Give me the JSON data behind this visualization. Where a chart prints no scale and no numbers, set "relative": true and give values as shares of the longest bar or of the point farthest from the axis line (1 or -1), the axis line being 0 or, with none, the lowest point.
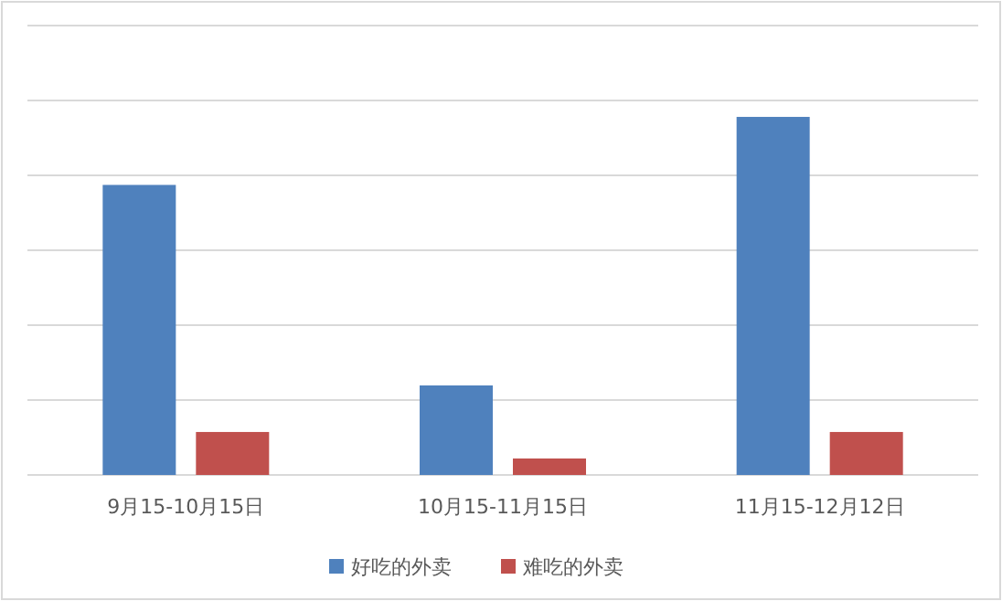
{
  "chart_data": {
    "type": "bar",
    "relative": true,
    "grid": "y",
    "legend": "bottom",
    "categories": [
      "9月15-10月15日",
      "10月15-11月15日",
      "11月15-12月12日"
    ],
    "series": [
      {
        "name": "好吃的外卖",
        "color": "#4f81bd",
        "values": [
          0.81,
          0.25,
          1
        ]
      },
      {
        "name": "难吃的外卖",
        "color": "#c0504d",
        "values": [
          0.12,
          0.046,
          0.12
        ]
      }
    ]
  }
}
